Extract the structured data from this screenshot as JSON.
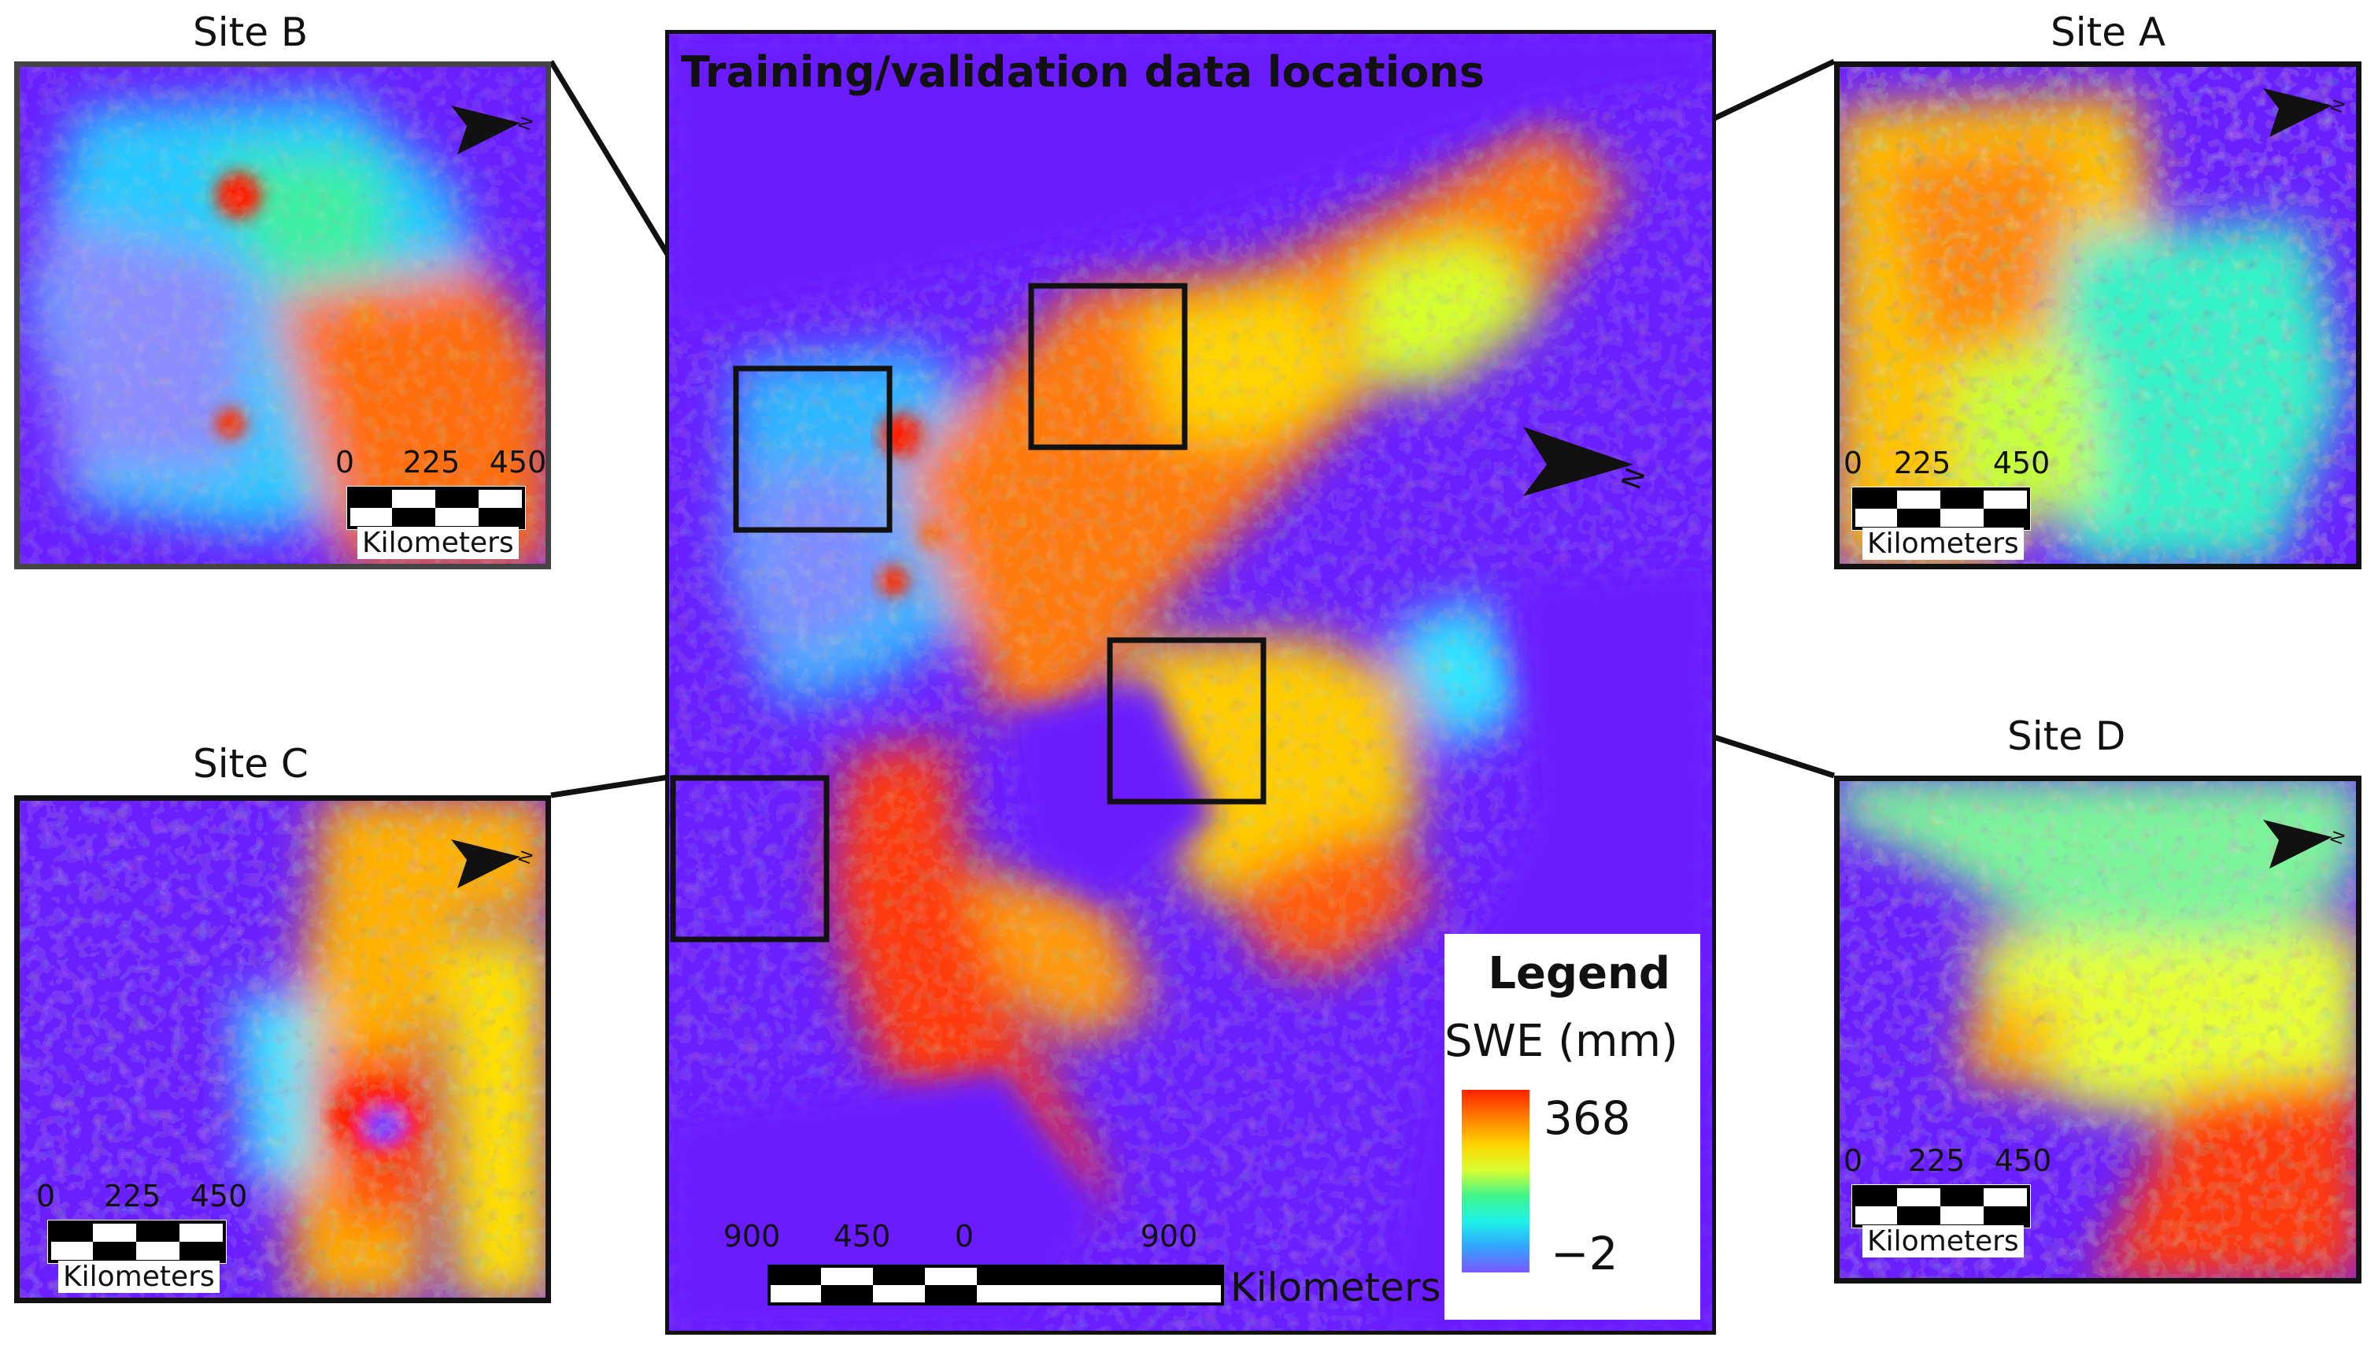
{
  "main_map": {
    "title": "Training/validation data locations",
    "scale_ticks": [
      "900",
      "450",
      "0",
      "900"
    ],
    "scale_unit": "Kilometers",
    "north_label": "N",
    "legend": {
      "title": "Legend",
      "variable": "SWE (mm)",
      "max_label": "368",
      "min_label": "−2"
    }
  },
  "sites": [
    {
      "id": "A",
      "label": "Site A",
      "scale_ticks": [
        "0",
        "225",
        "450"
      ],
      "scale_unit": "Kilometers",
      "north_label": "N"
    },
    {
      "id": "B",
      "label": "Site B",
      "scale_ticks": [
        "0",
        "225",
        "450"
      ],
      "scale_unit": "Kilometers",
      "north_label": "N"
    },
    {
      "id": "C",
      "label": "Site C",
      "scale_ticks": [
        "0",
        "225",
        "450"
      ],
      "scale_unit": "Kilometers",
      "north_label": "N"
    },
    {
      "id": "D",
      "label": "Site D",
      "scale_ticks": [
        "0",
        "225",
        "450"
      ],
      "scale_unit": "Kilometers",
      "north_label": "N"
    }
  ],
  "colors": {
    "background": "#6a1fff",
    "frame": "#111111",
    "ramp_high": "#ff2200",
    "ramp_mid": "#ffd400",
    "ramp_low_mid": "#1ef2e8",
    "ramp_low": "#7a57ff"
  }
}
